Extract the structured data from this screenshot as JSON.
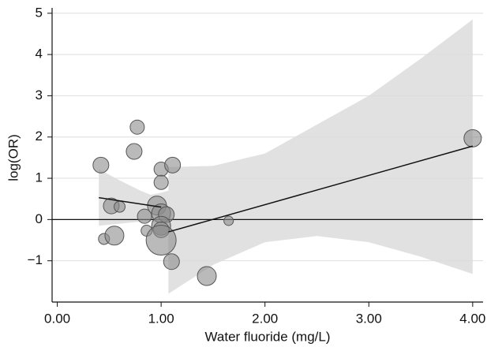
{
  "chart_data": {
    "type": "scatter",
    "xlabel": "Water fluoride (mg/L)",
    "ylabel": "log(OR)",
    "xlim": [
      -0.05,
      4.1
    ],
    "ylim": [
      -2.0,
      5.13
    ],
    "xticks": [
      {
        "value": 0,
        "label": "0.00"
      },
      {
        "value": 1,
        "label": "1.00"
      },
      {
        "value": 2,
        "label": "2.00"
      },
      {
        "value": 3,
        "label": "3.00"
      },
      {
        "value": 4,
        "label": "4.00"
      }
    ],
    "yticks": [
      {
        "value": -1,
        "label": "−1"
      },
      0,
      1,
      2,
      3,
      4,
      5
    ],
    "grid": true,
    "reference_line": 0,
    "point_color": "#8c8c8c",
    "band_color": "#dcdcdc",
    "line_color": "#111111",
    "points": {
      "x": [
        0.42,
        0.45,
        0.52,
        0.55,
        0.6,
        0.74,
        0.77,
        0.84,
        0.86,
        0.96,
        1.0,
        1.0,
        1.11,
        1.0,
        1.05,
        1.0,
        1.0,
        1.0,
        1.1,
        1.44,
        1.65,
        4.0
      ],
      "y": [
        1.32,
        -0.47,
        0.33,
        -0.39,
        0.31,
        1.65,
        2.24,
        0.08,
        -0.27,
        0.34,
        1.22,
        0.9,
        1.32,
        0.15,
        0.12,
        -0.15,
        -0.25,
        -0.5,
        -1.02,
        -1.37,
        -0.03,
        1.97
      ],
      "sizes": [
        10,
        7,
        10,
        12,
        7,
        10,
        9,
        9,
        7,
        12,
        9,
        9,
        10,
        12,
        10,
        12,
        10,
        19,
        10,
        12,
        6,
        11
      ]
    },
    "bands": [
      {
        "x": [
          0.4,
          0.6,
          0.8,
          0.9,
          1.0,
          1.07
        ],
        "upper": [
          1.22,
          0.95,
          0.7,
          0.6,
          0.65,
          0.7
        ],
        "lower": [
          -0.15,
          -0.1,
          -0.05,
          -0.05,
          -0.1,
          -0.1
        ]
      },
      {
        "x": [
          1.07,
          1.5,
          2.0,
          2.5,
          3.0,
          3.5,
          4.0
        ],
        "upper": [
          1.27,
          1.3,
          1.6,
          2.3,
          3.0,
          3.9,
          4.85
        ],
        "lower": [
          -1.8,
          -1.1,
          -0.55,
          -0.4,
          -0.55,
          -0.9,
          -1.32
        ]
      }
    ],
    "fits": [
      {
        "x": [
          0.4,
          1.0
        ],
        "y": [
          0.53,
          0.3
        ]
      },
      {
        "x": [
          1.07,
          4.0
        ],
        "y": [
          -0.3,
          1.78
        ]
      }
    ]
  }
}
